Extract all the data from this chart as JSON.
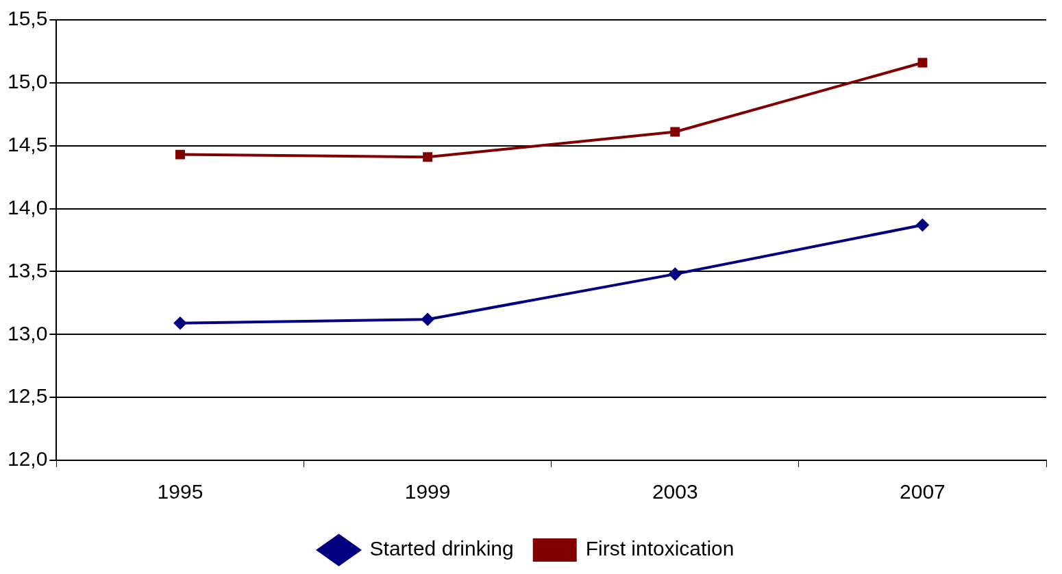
{
  "chart_data": {
    "type": "line",
    "categories": [
      "1995",
      "1999",
      "2003",
      "2007"
    ],
    "series": [
      {
        "name": "Started drinking",
        "color": "#000080",
        "values": [
          13.09,
          13.12,
          13.48,
          13.87
        ],
        "marker": "diamond"
      },
      {
        "name": "First intoxication",
        "color": "#800000",
        "values": [
          14.43,
          14.41,
          14.61,
          15.16
        ],
        "marker": "square"
      }
    ],
    "ylim": [
      12,
      15.5
    ],
    "yticks": [
      {
        "value": 12,
        "label": "12,0"
      },
      {
        "value": 12.5,
        "label": "12,5"
      },
      {
        "value": 13,
        "label": "13,0"
      },
      {
        "value": 13.5,
        "label": "13,5"
      },
      {
        "value": 14,
        "label": "14,0"
      },
      {
        "value": 14.5,
        "label": "14,5"
      },
      {
        "value": 15,
        "label": "15,0"
      },
      {
        "value": 15.5,
        "label": "15,5"
      }
    ],
    "grid": "y",
    "legend": "bottom",
    "line_style": "solid"
  }
}
